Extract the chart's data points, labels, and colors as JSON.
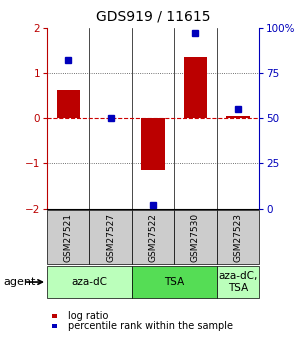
{
  "title": "GDS919 / 11615",
  "samples": [
    "GSM27521",
    "GSM27527",
    "GSM27522",
    "GSM27530",
    "GSM27523"
  ],
  "log_ratios": [
    0.62,
    0.0,
    -1.15,
    1.35,
    0.05
  ],
  "percentiles": [
    82,
    50,
    2,
    97,
    55
  ],
  "ylim": [
    -2,
    2
  ],
  "y2lim": [
    0,
    100
  ],
  "yticks": [
    -2,
    -1,
    0,
    1,
    2
  ],
  "y2ticks": [
    0,
    25,
    50,
    75,
    100
  ],
  "y2ticklabels": [
    "0",
    "25",
    "50",
    "75",
    "100%"
  ],
  "bar_color": "#bb0000",
  "dot_color": "#0000bb",
  "groups": [
    {
      "label": "aza-dC",
      "start": 0,
      "end": 2,
      "color": "#bbffbb"
    },
    {
      "label": "TSA",
      "start": 2,
      "end": 4,
      "color": "#55dd55"
    },
    {
      "label": "aza-dC,\nTSA",
      "start": 4,
      "end": 5,
      "color": "#bbffbb"
    }
  ],
  "agent_label": "agent",
  "legend_red_label": "log ratio",
  "legend_blue_label": "percentile rank within the sample",
  "hline_zero_color": "#cc0000",
  "hline_tick_color": "#444444",
  "bar_width": 0.55,
  "sample_box_color": "#cccccc",
  "fig_bg": "#ffffff"
}
